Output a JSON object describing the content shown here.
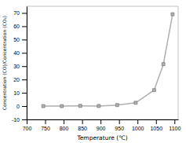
{
  "chart_data": {
    "type": "line",
    "x": [
      745,
      795,
      845,
      895,
      945,
      995,
      1045,
      1070,
      1095
    ],
    "values": [
      0.0,
      0.0,
      0.2,
      0.1,
      0.8,
      2.5,
      12.0,
      31.5,
      69.0
    ],
    "xlabel": "Temperature (℃)",
    "ylabel": "Concentration (CO)/Concentration (CO₂)",
    "xlim": [
      700,
      1110
    ],
    "ylim": [
      -10,
      75
    ],
    "xticks": [
      700,
      750,
      800,
      850,
      900,
      950,
      1000,
      1050,
      1100
    ],
    "yticks": [
      -10,
      0,
      10,
      20,
      30,
      40,
      50,
      60,
      70
    ],
    "color": "#b0b0b0",
    "marker": "square"
  }
}
